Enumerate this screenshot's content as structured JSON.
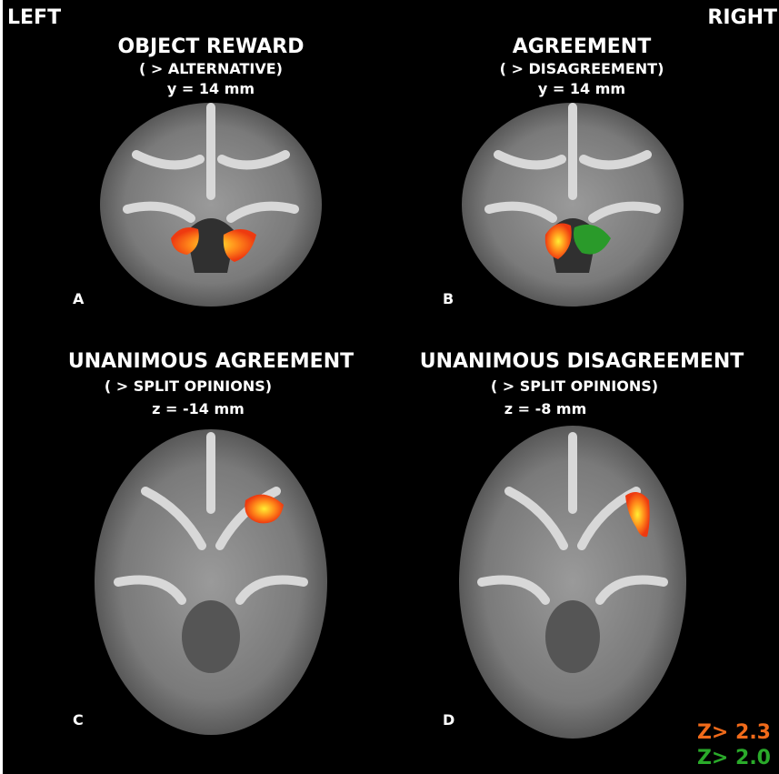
{
  "orientation": {
    "left": "LEFT",
    "right": "RIGHT"
  },
  "panels": [
    {
      "title": "OBJECT REWARD",
      "subtitle": "( > ALTERNATIVE)",
      "coordinate": "y = 14 mm",
      "letter": "A"
    },
    {
      "title": "AGREEMENT",
      "subtitle": "( > DISAGREEMENT)",
      "coordinate": "y = 14 mm",
      "letter": "B"
    },
    {
      "title": "UNANIMOUS AGREEMENT",
      "subtitle": "( > SPLIT OPINIONS)",
      "coordinate": "z = -14 mm",
      "letter": "C"
    },
    {
      "title": "UNANIMOUS DISAGREEMENT",
      "subtitle": "( > SPLIT OPINIONS)",
      "coordinate": "z = -8 mm",
      "letter": "D"
    }
  ],
  "legend": [
    {
      "label": "Z> 2.3"
    },
    {
      "label": "Z> 2.0"
    }
  ]
}
